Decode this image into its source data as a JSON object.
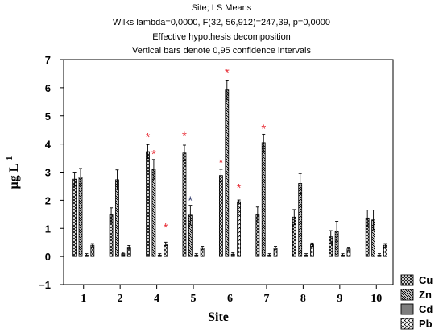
{
  "chart_data": {
    "type": "bar",
    "title_lines": [
      "Site; LS Means",
      "Wilks lambda=0,0000, F(32, 56,912)=247,39, p=0,0000",
      "Effective hypothesis decomposition",
      "Vertical bars denote 0,95 confidence intervals"
    ],
    "xlabel": "Site",
    "ylabel": "µg L",
    "ylabel_sup": "-1",
    "ylim": [
      -1,
      7
    ],
    "yticks": [
      "−1",
      "0",
      "1",
      "2",
      "3",
      "4",
      "5",
      "6",
      "7"
    ],
    "categories": [
      "1",
      "2",
      "4",
      "5",
      "6",
      "7",
      "8",
      "9",
      "10"
    ],
    "legend_position": "bottom-right",
    "series": [
      {
        "name": "Cu",
        "values": [
          2.75,
          1.48,
          3.73,
          3.68,
          2.88,
          1.48,
          1.4,
          0.7,
          1.37
        ],
        "error": [
          0.25,
          0.25,
          0.25,
          0.28,
          0.22,
          0.28,
          0.27,
          0.22,
          0.28
        ]
      },
      {
        "name": "Zn",
        "values": [
          2.83,
          2.73,
          3.1,
          1.47,
          5.92,
          4.05,
          2.6,
          0.9,
          1.3
        ],
        "error": [
          0.3,
          0.35,
          0.35,
          0.35,
          0.35,
          0.3,
          0.35,
          0.35,
          0.35
        ]
      },
      {
        "name": "Cd",
        "values": [
          0.05,
          0.1,
          0.05,
          0.05,
          0.08,
          0.05,
          0.05,
          0.05,
          0.05
        ],
        "error": [
          0.05,
          0.05,
          0.05,
          0.05,
          0.05,
          0.05,
          0.05,
          0.05,
          0.05
        ]
      },
      {
        "name": "Pb",
        "values": [
          0.4,
          0.33,
          0.45,
          0.3,
          1.95,
          0.3,
          0.42,
          0.27,
          0.4
        ],
        "error": [
          0.06,
          0.06,
          0.06,
          0.06,
          0.06,
          0.06,
          0.06,
          0.06,
          0.06
        ]
      }
    ],
    "annotations": [
      {
        "text": "*",
        "category": "4",
        "series": "Cu",
        "y": 4.3,
        "color": "#e8313a"
      },
      {
        "text": "*",
        "category": "4",
        "series": "Zn",
        "y": 3.7,
        "color": "#e8313a"
      },
      {
        "text": "*",
        "category": "4",
        "series": "Pb",
        "y": 1.1,
        "color": "#e8313a"
      },
      {
        "text": "*",
        "category": "5",
        "series": "Cu",
        "y": 4.35,
        "color": "#e8313a"
      },
      {
        "text": "*",
        "category": "5",
        "series": "Zn",
        "y": 2.05,
        "color": "#333c6b"
      },
      {
        "text": "*",
        "category": "6",
        "series": "Cu",
        "y": 3.4,
        "color": "#e8313a"
      },
      {
        "text": "*",
        "category": "6",
        "series": "Zn",
        "y": 6.6,
        "color": "#e8313a"
      },
      {
        "text": "*",
        "category": "6",
        "series": "Pb",
        "y": 2.5,
        "color": "#e8313a"
      },
      {
        "text": "*",
        "category": "7",
        "series": "Zn",
        "y": 4.6,
        "color": "#e8313a"
      }
    ]
  }
}
